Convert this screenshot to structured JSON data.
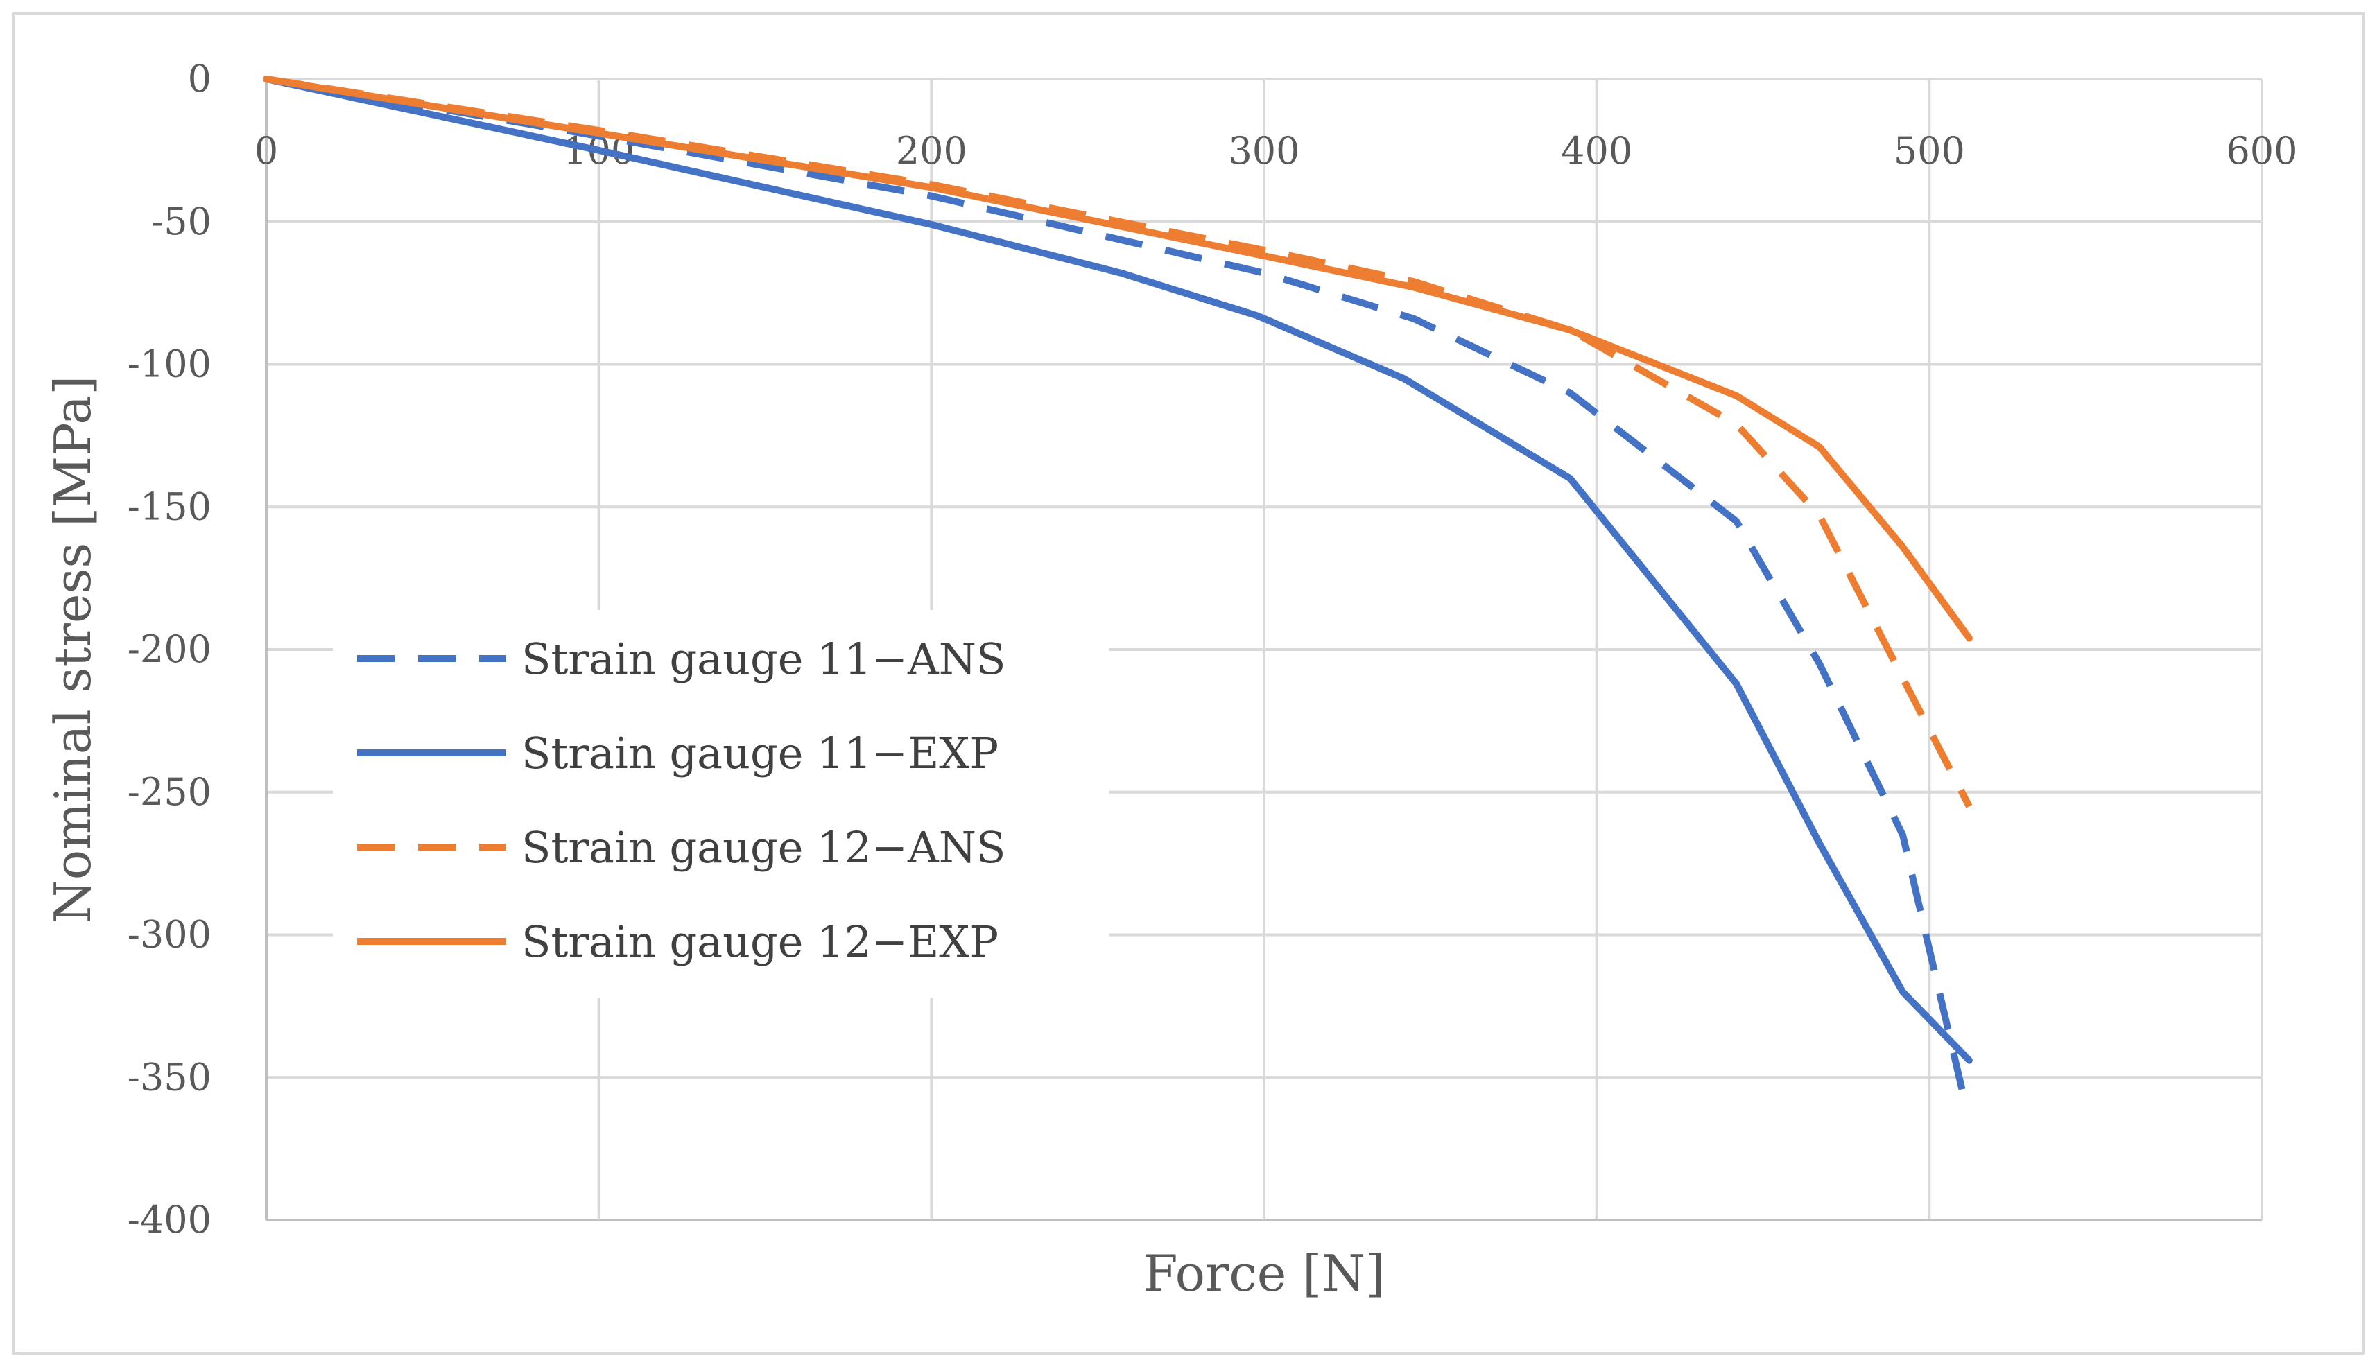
{
  "chart_data": {
    "type": "line",
    "title": "",
    "xlabel": "Force [N]",
    "ylabel": "Nominal stress [MPa]",
    "xlim": [
      0,
      600
    ],
    "ylim": [
      -400,
      0
    ],
    "xticks": [
      0,
      100,
      200,
      300,
      400,
      500,
      600
    ],
    "yticks": [
      0,
      -50,
      -100,
      -150,
      -200,
      -250,
      -300,
      -350,
      -400
    ],
    "grid": true,
    "legend_position": "left",
    "series": [
      {
        "name": "Strain gauge 11−ANS",
        "color": "#4472C4",
        "dash": true,
        "x": [
          0,
          100,
          200,
          300,
          345,
          392,
          442,
          467,
          492,
          510
        ],
        "y": [
          0,
          -20,
          -41,
          -68,
          -84,
          -110,
          -155,
          -205,
          -265,
          -355
        ]
      },
      {
        "name": "Strain gauge 11−EXP",
        "color": "#4472C4",
        "dash": false,
        "x": [
          0,
          100,
          200,
          257,
          298,
          342,
          392,
          442,
          467,
          492,
          512
        ],
        "y": [
          0,
          -25,
          -51,
          -68,
          -83,
          -105,
          -140,
          -212,
          -268,
          -320,
          -344
        ]
      },
      {
        "name": "Strain gauge 12−ANS",
        "color": "#ED7D31",
        "dash": true,
        "x": [
          0,
          100,
          200,
          300,
          345,
          392,
          442,
          467,
          492,
          512
        ],
        "y": [
          0,
          -18,
          -37,
          -60,
          -71,
          -88,
          -121,
          -153,
          -210,
          -255
        ]
      },
      {
        "name": "Strain gauge 12−EXP",
        "color": "#ED7D31",
        "dash": false,
        "x": [
          0,
          100,
          200,
          300,
          345,
          392,
          442,
          467,
          492,
          512
        ],
        "y": [
          0,
          -19,
          -38,
          -62,
          -73,
          -88,
          -111,
          -129,
          -164,
          -196
        ]
      }
    ]
  }
}
